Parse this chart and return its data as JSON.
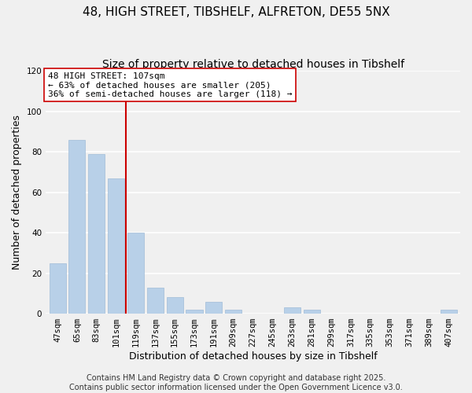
{
  "title": "48, HIGH STREET, TIBSHELF, ALFRETON, DE55 5NX",
  "subtitle": "Size of property relative to detached houses in Tibshelf",
  "xlabel": "Distribution of detached houses by size in Tibshelf",
  "ylabel": "Number of detached properties",
  "categories": [
    "47sqm",
    "65sqm",
    "83sqm",
    "101sqm",
    "119sqm",
    "137sqm",
    "155sqm",
    "173sqm",
    "191sqm",
    "209sqm",
    "227sqm",
    "245sqm",
    "263sqm",
    "281sqm",
    "299sqm",
    "317sqm",
    "335sqm",
    "353sqm",
    "371sqm",
    "389sqm",
    "407sqm"
  ],
  "values": [
    25,
    86,
    79,
    67,
    40,
    13,
    8,
    2,
    6,
    2,
    0,
    0,
    3,
    2,
    0,
    0,
    0,
    0,
    0,
    0,
    2
  ],
  "bar_color": "#b8d0e8",
  "bar_edge_color": "#a0bcd8",
  "vline_x": 3.5,
  "vline_color": "#cc0000",
  "annotation_title": "48 HIGH STREET: 107sqm",
  "annotation_line1": "← 63% of detached houses are smaller (205)",
  "annotation_line2": "36% of semi-detached houses are larger (118) →",
  "ylim": [
    0,
    120
  ],
  "yticks": [
    0,
    20,
    40,
    60,
    80,
    100,
    120
  ],
  "footer1": "Contains HM Land Registry data © Crown copyright and database right 2025.",
  "footer2": "Contains public sector information licensed under the Open Government Licence v3.0.",
  "background_color": "#f0f0f0",
  "grid_color": "#ffffff",
  "title_fontsize": 11,
  "subtitle_fontsize": 10,
  "axis_label_fontsize": 9,
  "tick_fontsize": 7.5,
  "annotation_fontsize": 8,
  "footer_fontsize": 7
}
